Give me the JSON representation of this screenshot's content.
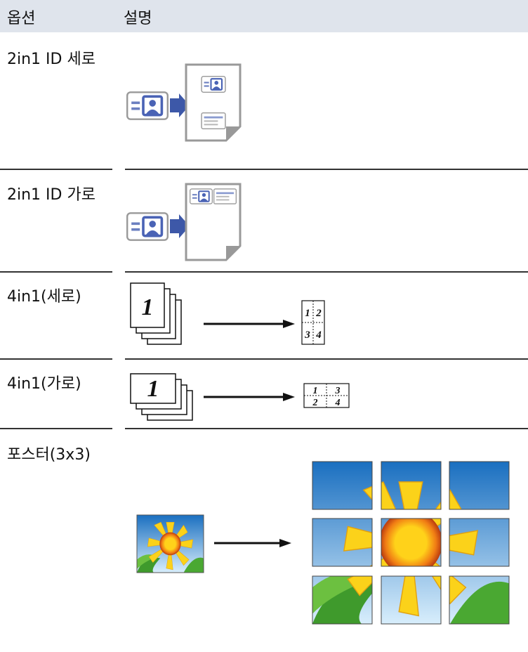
{
  "header": {
    "option": "옵션",
    "description": "설명"
  },
  "rows": [
    {
      "option": "2in1 ID 세로"
    },
    {
      "option": "2in1 ID 가로"
    },
    {
      "option": "4in1(세로)",
      "figure": {
        "page": "1",
        "grid": [
          "1",
          "2",
          "3",
          "4"
        ]
      }
    },
    {
      "option": "4in1(가로)",
      "figure": {
        "page": "1",
        "grid": [
          "1",
          "3",
          "2",
          "4"
        ]
      }
    },
    {
      "option": "포스터(3x3)"
    }
  ]
}
